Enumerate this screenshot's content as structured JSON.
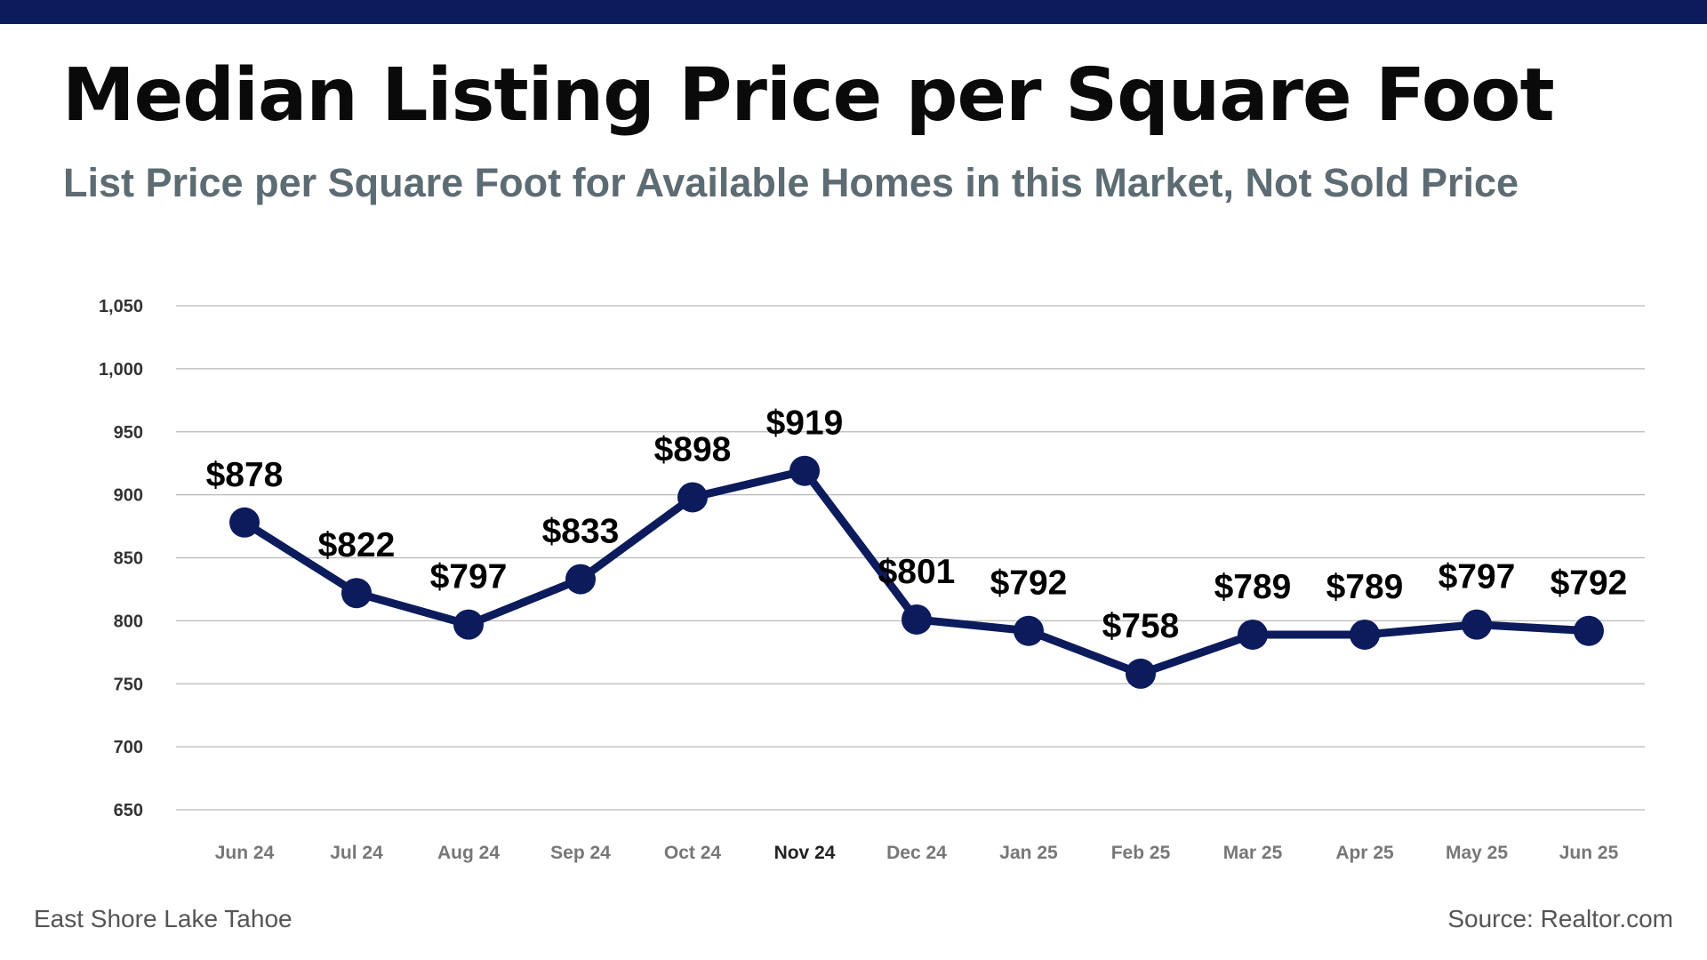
{
  "header": {
    "title": "Median Listing Price per Square Foot",
    "subtitle": "List Price per Square Foot for Available Homes in this Market, Not Sold Price"
  },
  "footer": {
    "location": "East Shore Lake Tahoe",
    "source": "Source: Realtor.com"
  },
  "colors": {
    "top_bar": "#0b1b5c",
    "line": "#0b1b5c",
    "subtitle": "#5d6c73",
    "grid": "#b9b9b9"
  },
  "chart_data": {
    "type": "line",
    "categories": [
      "Jun 24",
      "Jul 24",
      "Aug 24",
      "Sep 24",
      "Oct 24",
      "Nov 24",
      "Dec 24",
      "Jan 25",
      "Feb 25",
      "Mar 25",
      "Apr 25",
      "May 25",
      "Jun 25"
    ],
    "highlighted_category": "Nov 24",
    "series": [
      {
        "values": [
          878,
          822,
          797,
          833,
          898,
          919,
          801,
          792,
          758,
          789,
          789,
          797,
          792
        ],
        "labels": [
          "$878",
          "$822",
          "$797",
          "$833",
          "$898",
          "$919",
          "$801",
          "$792",
          "$758",
          "$789",
          "$789",
          "$797",
          "$792"
        ]
      }
    ],
    "ylim": [
      650,
      1050
    ],
    "yticks": [
      650,
      700,
      750,
      800,
      850,
      900,
      950,
      1000,
      1050
    ],
    "ytick_labels": [
      "650",
      "700",
      "750",
      "800",
      "850",
      "900",
      "950",
      "1,000",
      "1,050"
    ],
    "grid": true,
    "legend": false
  }
}
